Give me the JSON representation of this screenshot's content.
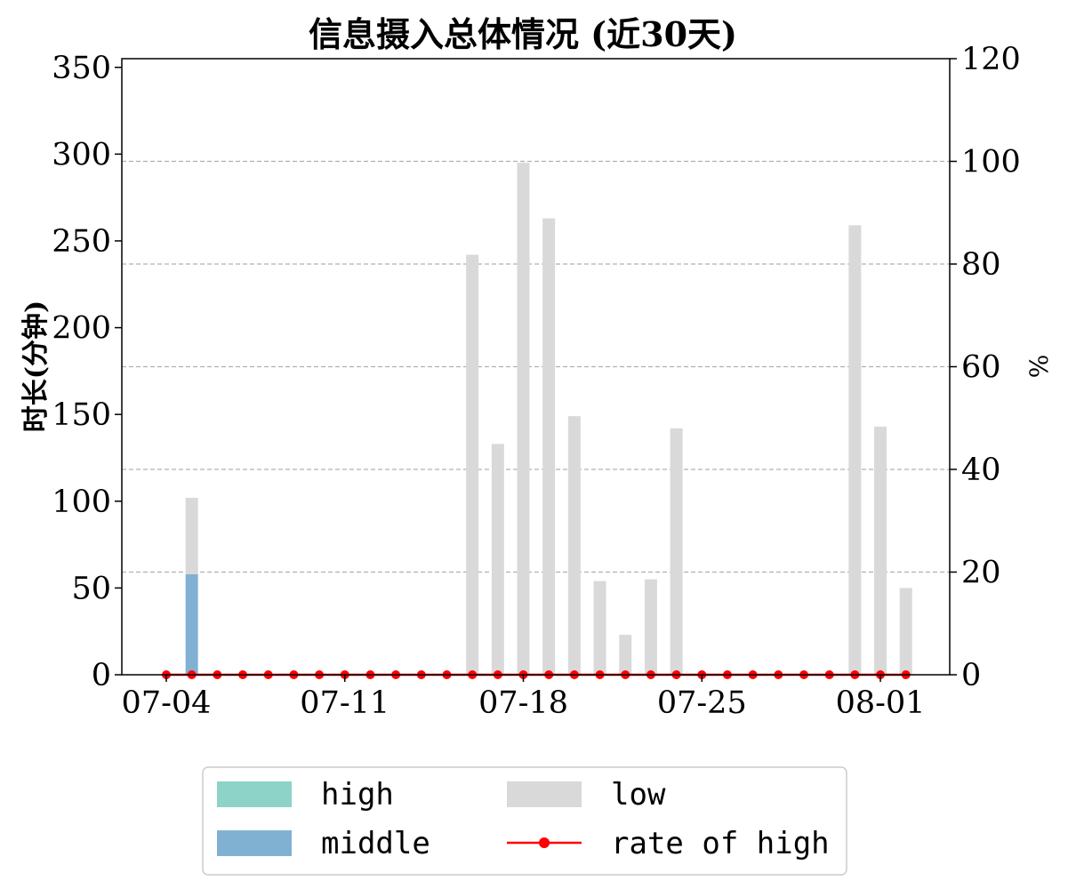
{
  "chart_data": {
    "type": "bar",
    "title": "信息摄入总体情况 (近30天)",
    "ylabel": "时长(分钟)",
    "y2label": "%",
    "ylim": [
      0,
      355
    ],
    "y2lim": [
      0,
      120
    ],
    "yticks": [
      0,
      50,
      100,
      150,
      200,
      250,
      300,
      350
    ],
    "y2ticks": [
      0,
      20,
      40,
      60,
      80,
      100,
      120
    ],
    "x_tick_labels": [
      "07-04",
      "07-11",
      "07-18",
      "07-25",
      "08-01"
    ],
    "x_tick_days": [
      0,
      7,
      14,
      21,
      28
    ],
    "days": [
      0,
      1,
      2,
      3,
      4,
      5,
      6,
      7,
      8,
      9,
      10,
      11,
      12,
      13,
      14,
      15,
      16,
      17,
      18,
      19,
      20,
      21,
      22,
      23,
      24,
      25,
      26,
      27,
      28,
      29
    ],
    "stacked": true,
    "series": [
      {
        "name": "high",
        "kind": "bar",
        "color": "#8dd3c7",
        "values": [
          0,
          0,
          0,
          0,
          0,
          0,
          0,
          0,
          0,
          0,
          0,
          0,
          0,
          0,
          0,
          0,
          0,
          0,
          0,
          0,
          0,
          0,
          0,
          0,
          0,
          0,
          0,
          0,
          0,
          0
        ]
      },
      {
        "name": "middle",
        "kind": "bar",
        "color": "#80b1d3",
        "values": [
          0,
          58,
          0,
          0,
          0,
          0,
          0,
          0,
          0,
          0,
          0,
          0,
          0,
          0,
          0,
          0,
          0,
          0,
          0,
          0,
          0,
          0,
          0,
          0,
          0,
          0,
          0,
          0,
          0,
          0
        ]
      },
      {
        "name": "low",
        "kind": "bar",
        "color": "#d9d9d9",
        "values": [
          0,
          44,
          0,
          0,
          0,
          0,
          0,
          0,
          0,
          0,
          0,
          0,
          242,
          133,
          295,
          263,
          149,
          54,
          23,
          55,
          142,
          0,
          0,
          0,
          0,
          0,
          0,
          259,
          143,
          50
        ]
      },
      {
        "name": "rate of high",
        "kind": "line",
        "axis": "right",
        "color": "#ff0000",
        "values": [
          0,
          0,
          0,
          0,
          0,
          0,
          0,
          0,
          0,
          0,
          0,
          0,
          0,
          0,
          0,
          0,
          0,
          0,
          0,
          0,
          0,
          0,
          0,
          0,
          0,
          0,
          0,
          0,
          0,
          0
        ]
      }
    ],
    "grid": "horizontal dashed (right axis)",
    "legend": {
      "placement": "bottom-center",
      "columns": 2,
      "order": [
        "high",
        "low",
        "middle",
        "rate of high"
      ]
    }
  }
}
